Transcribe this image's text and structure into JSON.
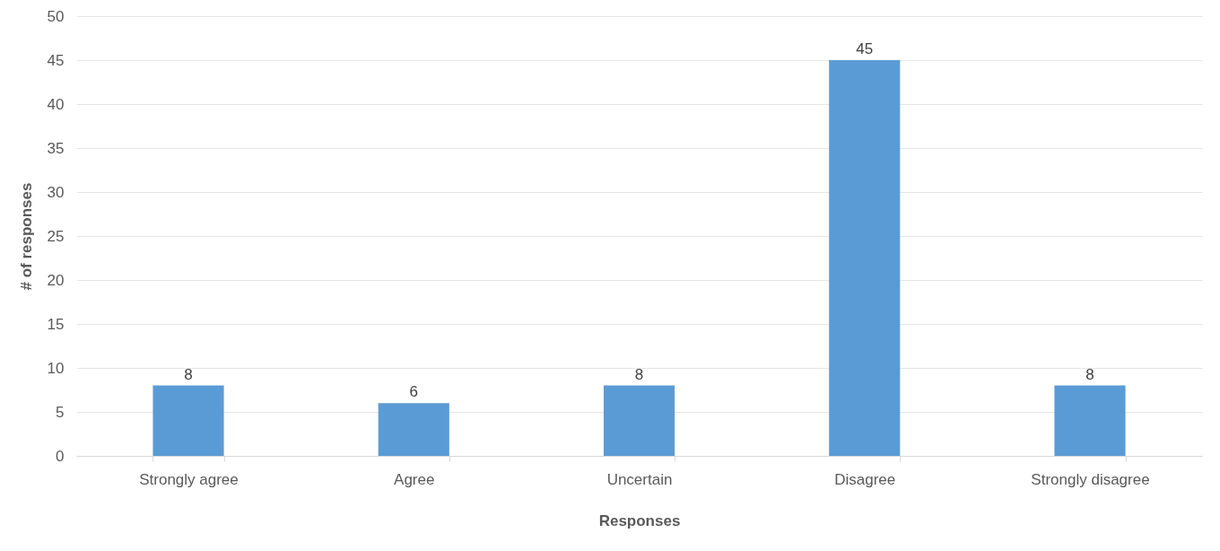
{
  "chart_data": {
    "type": "bar",
    "xlabel": "Responses",
    "ylabel": "# of responses",
    "categories": [
      "Strongly agree",
      "Agree",
      "Uncertain",
      "Disagree",
      "Strongly disagree"
    ],
    "values": [
      8,
      6,
      8,
      45,
      8
    ],
    "color": "#5b9bd5",
    "ylim": [
      0,
      50
    ],
    "yticks": [
      0,
      5,
      10,
      15,
      20,
      25,
      30,
      35,
      40,
      45,
      50
    ],
    "grid": "y",
    "data_labels": true
  }
}
